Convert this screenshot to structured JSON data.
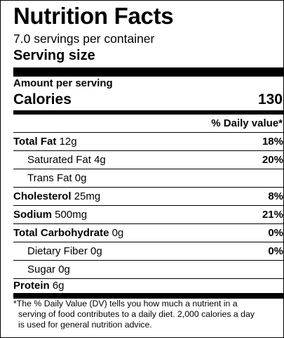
{
  "label": {
    "title": "Nutrition Facts",
    "servings_per_container": "7.0 servings per container",
    "serving_size_label": "Serving size",
    "amount_per_serving": "Amount per serving",
    "calories_label": "Calories",
    "calories_value": "130",
    "daily_value_header": "% Daily value*",
    "nutrients": [
      {
        "name": "Total Fat",
        "amount": "12g",
        "dv": "18%"
      },
      {
        "name": "Saturated Fat",
        "amount": "4g",
        "dv": "20%"
      },
      {
        "name": "Trans Fat",
        "amount": "0g",
        "dv": ""
      },
      {
        "name": "Cholesterol",
        "amount": "25mg",
        "dv": "8%"
      },
      {
        "name": "Sodium",
        "amount": "500mg",
        "dv": "21%"
      },
      {
        "name": "Total Carbohydrate",
        "amount": "0g",
        "dv": "0%"
      },
      {
        "name": "Dietary Fiber",
        "amount": "0g",
        "dv": "0%"
      },
      {
        "name": "Sugar",
        "amount": "0g",
        "dv": ""
      },
      {
        "name": "Protein",
        "amount": "6g",
        "dv": ""
      }
    ],
    "footnote_lines": [
      "*The % Daily Value (DV) tells you how much a nutrient in a",
      "serving of food contributes to a daily diet. 2,000 calories a day",
      "is used for general nutrition advice."
    ]
  }
}
